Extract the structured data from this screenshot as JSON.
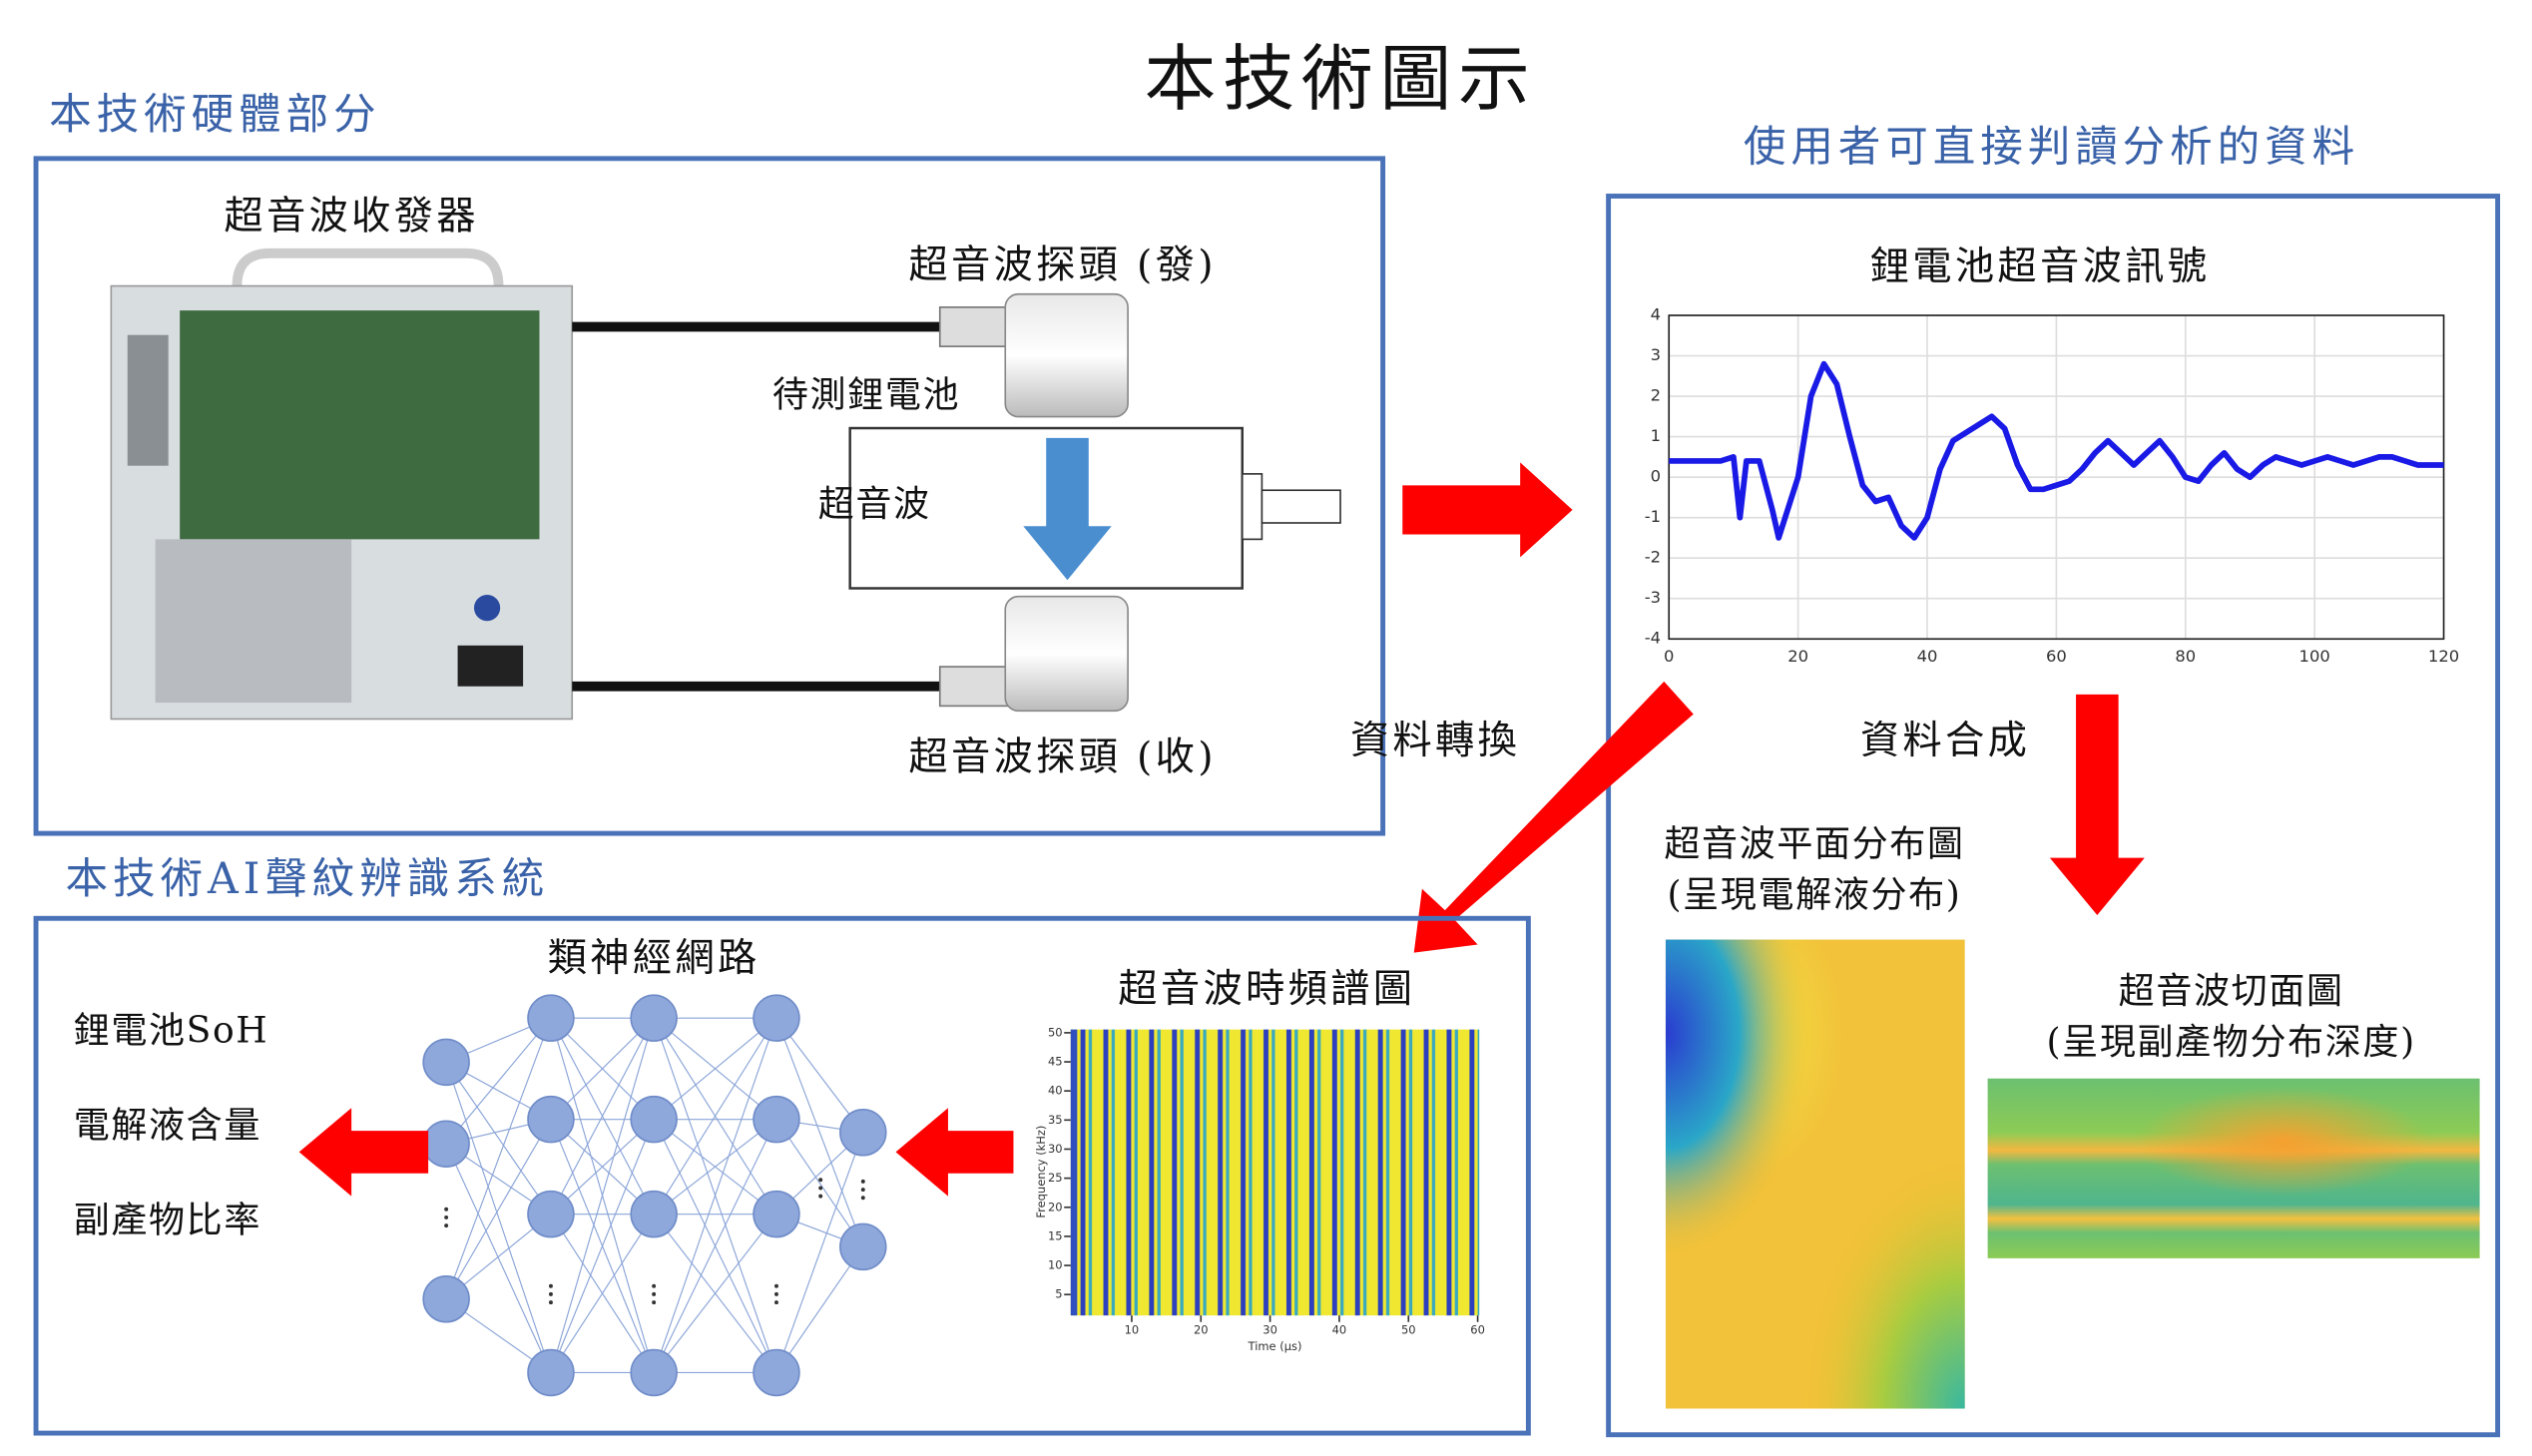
{
  "title": "本技術圖示",
  "hardware": {
    "heading": "本技術硬體部分",
    "transceiver": "超音波收發器",
    "probe_tx": "超音波探頭 (發)",
    "probe_rx": "超音波探頭 (收)",
    "battery": "待測鋰電池",
    "wave": "超音波"
  },
  "conversion": "資料轉換",
  "output": {
    "heading": "使用者可直接判讀分析的資料",
    "signal_chart": {
      "type": "line",
      "title": "鋰電池超音波訊號",
      "color": "#1a1ae6",
      "grid": true,
      "xlim": [
        0,
        120
      ],
      "ylim": [
        -4,
        4
      ],
      "xticks": [
        0,
        20,
        40,
        60,
        80,
        100,
        120
      ],
      "yticks": [
        -4,
        -3,
        -2,
        -1,
        0,
        1,
        2,
        3,
        4
      ],
      "x": [
        0,
        2,
        4,
        6,
        8,
        10,
        11,
        12,
        14,
        16,
        17,
        18,
        20,
        22,
        24,
        26,
        28,
        30,
        32,
        34,
        36,
        38,
        40,
        42,
        44,
        46,
        48,
        50,
        52,
        54,
        56,
        58,
        60,
        62,
        64,
        66,
        68,
        70,
        72,
        74,
        76,
        78,
        80,
        82,
        84,
        86,
        88,
        90,
        92,
        94,
        96,
        98,
        100,
        102,
        104,
        106,
        108,
        110,
        112,
        114,
        116,
        118,
        120
      ],
      "values": [
        0.4,
        0.4,
        0.4,
        0.4,
        0.4,
        0.5,
        -1.0,
        0.4,
        0.4,
        -0.8,
        -1.5,
        -1.0,
        0.0,
        2.0,
        2.8,
        2.3,
        1.0,
        -0.2,
        -0.6,
        -0.5,
        -1.2,
        -1.5,
        -1.0,
        0.2,
        0.9,
        1.1,
        1.3,
        1.5,
        1.2,
        0.3,
        -0.3,
        -0.3,
        -0.2,
        -0.1,
        0.2,
        0.6,
        0.9,
        0.6,
        0.3,
        0.6,
        0.9,
        0.5,
        0.0,
        -0.1,
        0.3,
        0.6,
        0.2,
        0.0,
        0.3,
        0.5,
        0.4,
        0.3,
        0.4,
        0.5,
        0.4,
        0.3,
        0.4,
        0.5,
        0.5,
        0.4,
        0.3,
        0.3,
        0.3
      ]
    },
    "synthesis": "資料合成",
    "plane_map": {
      "title": "超音波平面分布圖",
      "note": "(呈現電解液分布)"
    },
    "section_map": {
      "title": "超音波切面圖",
      "note": "(呈現副產物分布深度)"
    }
  },
  "ai": {
    "heading": "本技術AI聲紋辨識系統",
    "network": "類神經網路",
    "spectrogram": {
      "title": "超音波時頻譜圖",
      "xlabel": "Time (μs)",
      "ylabel": "Frequency (kHz)",
      "xlim": [
        0,
        60
      ],
      "ylim": [
        0,
        50
      ],
      "xticks": [
        10,
        20,
        30,
        40,
        50,
        60
      ],
      "yticks": [
        5,
        10,
        15,
        20,
        25,
        30,
        35,
        40,
        45,
        50
      ]
    },
    "outputs": [
      "鋰電池SoH",
      "電解液含量",
      "副產物比率"
    ]
  }
}
